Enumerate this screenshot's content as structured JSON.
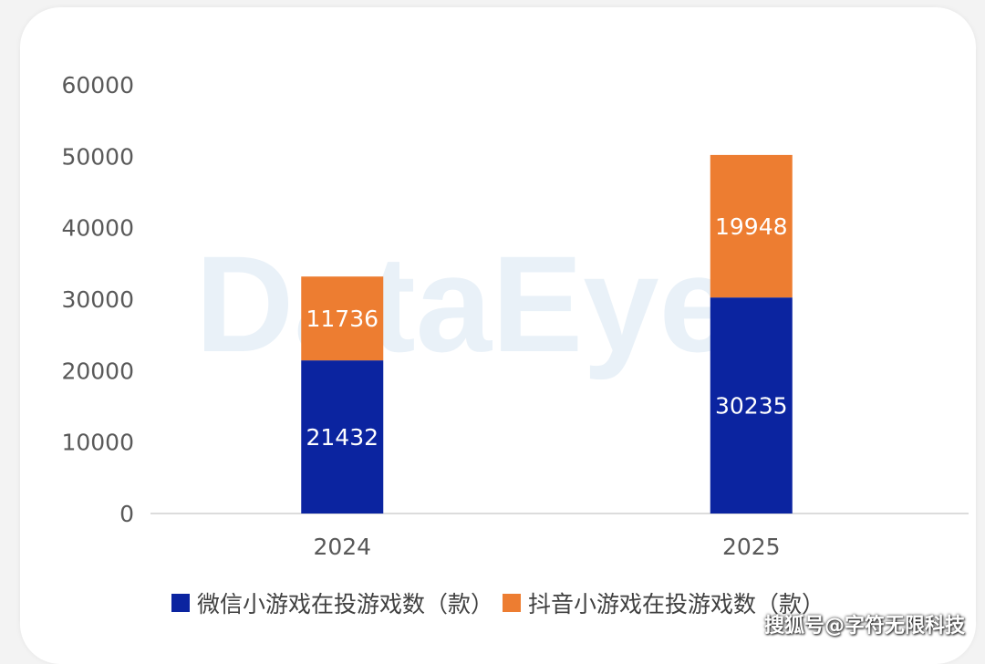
{
  "chart_data": {
    "type": "bar",
    "stacked": true,
    "categories": [
      "2024",
      "2025"
    ],
    "series": [
      {
        "name": "微信小游戏在投游戏数（款）",
        "values": [
          21432,
          30235
        ],
        "color": "#0b24a0"
      },
      {
        "name": "抖音小游戏在投游戏数（款）",
        "values": [
          11736,
          19948
        ],
        "color": "#ed7d31"
      }
    ],
    "ylim": [
      0,
      60000
    ],
    "yticks": [
      0,
      10000,
      20000,
      30000,
      40000,
      50000,
      60000
    ],
    "grid": false,
    "legend_position": "bottom"
  },
  "watermark": "DataEye",
  "credit": "搜狐号@字符无限科技"
}
